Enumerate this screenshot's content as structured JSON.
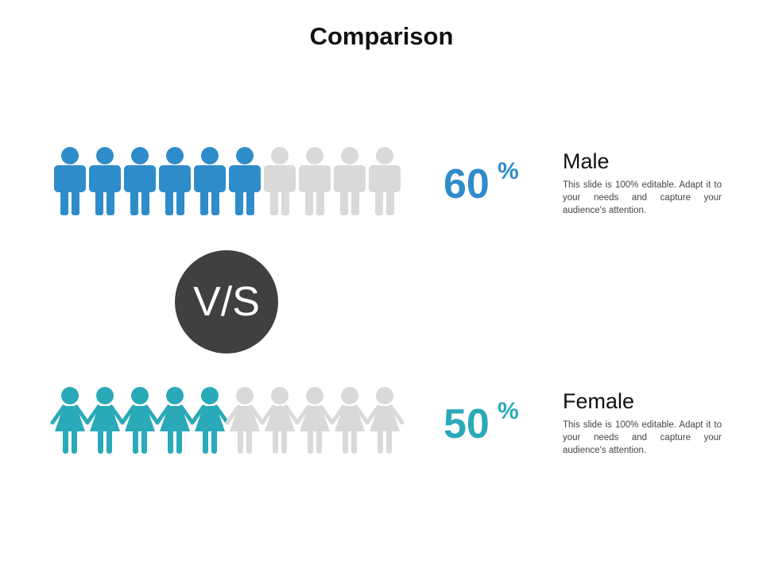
{
  "title": "Comparison",
  "vs": "V/S",
  "groups": [
    {
      "label": "Male",
      "percent": 60,
      "unit": "%",
      "color": "#2f8ccb",
      "icon": "male",
      "description": "This slide is 100% editable. Adapt it to your needs and capture your audience's attention."
    },
    {
      "label": "Female",
      "percent": 50,
      "unit": "%",
      "color": "#2aaab8",
      "icon": "female",
      "description": "This slide is 100% editable. Adapt it to your needs and capture your audience's attention."
    }
  ],
  "inactive_color": "#d9d9d9"
}
